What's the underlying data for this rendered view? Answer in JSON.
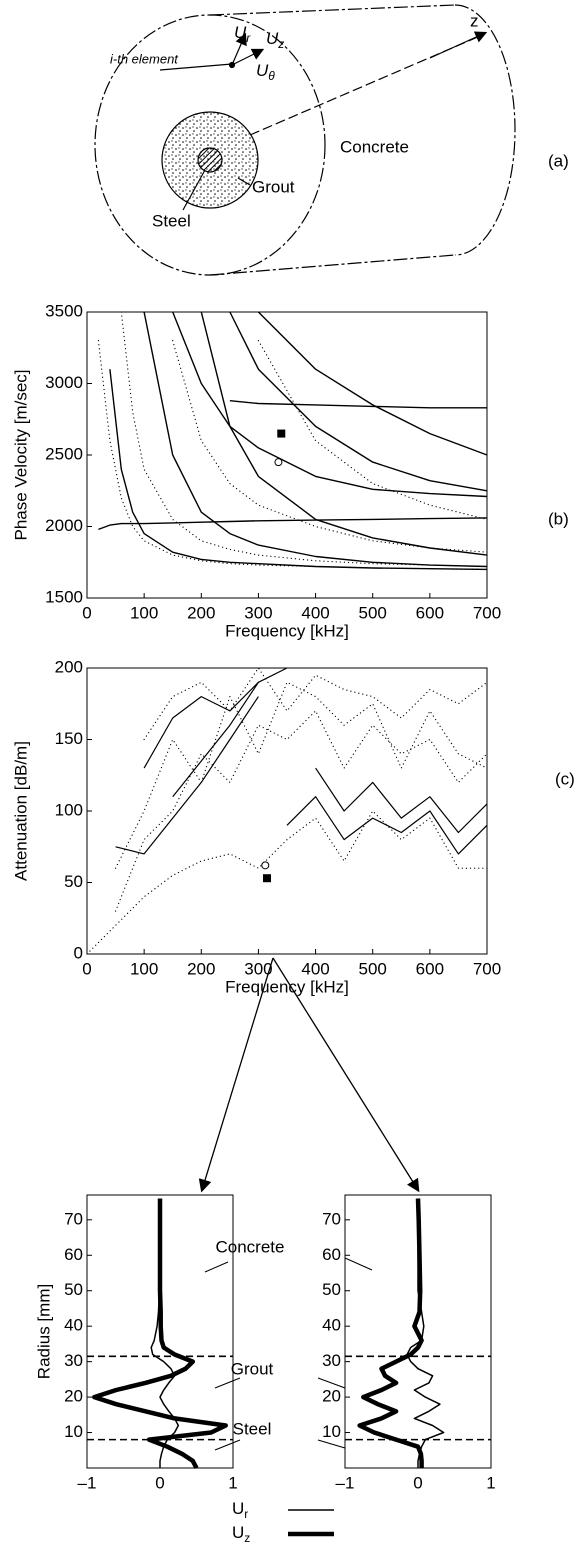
{
  "figure_a": {
    "i_element": "i-th element",
    "ur": {
      "symbol": "U",
      "sub": "r"
    },
    "uz": {
      "symbol": "U",
      "sub": "z"
    },
    "utheta": {
      "symbol": "U",
      "sub": "θ"
    },
    "z": "z",
    "concrete": "Concrete",
    "grout": "Grout",
    "steel": "Steel",
    "panel_label": "(a)"
  },
  "chart_data": [
    {
      "type": "line",
      "panel_label": "(b)",
      "xlabel": "Frequency [kHz]",
      "ylabel": "Phase Velocity [m/sec]",
      "xlim": [
        0,
        700
      ],
      "ylim": [
        1500,
        3500
      ],
      "xticks": [
        0,
        100,
        200,
        300,
        400,
        500,
        600,
        700
      ],
      "yticks": [
        1500,
        2000,
        2500,
        3000,
        3500
      ],
      "x": [
        20,
        40,
        60,
        80,
        100,
        150,
        200,
        250,
        300,
        400,
        500,
        600,
        700
      ],
      "series": [
        {
          "color": "#000000",
          "style": "solid",
          "linewidth": 1.4,
          "values": [
            null,
            3100,
            2400,
            2100,
            1950,
            1820,
            1770,
            1750,
            1740,
            1720,
            1710,
            1705,
            1700
          ]
        },
        {
          "color": "#000000",
          "style": "solid",
          "linewidth": 1.4,
          "values": [
            null,
            null,
            null,
            null,
            3500,
            2500,
            2100,
            1950,
            1870,
            1790,
            1750,
            1730,
            1720
          ]
        },
        {
          "color": "#000000",
          "style": "solid",
          "linewidth": 1.4,
          "values": [
            null,
            null,
            null,
            null,
            null,
            null,
            3500,
            2700,
            2350,
            2050,
            1920,
            1850,
            1800
          ]
        },
        {
          "color": "#000000",
          "style": "solid",
          "linewidth": 1.4,
          "values": [
            1980,
            2010,
            2020,
            2020,
            2020,
            2025,
            2030,
            2035,
            2040,
            2045,
            2050,
            2055,
            2060
          ]
        },
        {
          "color": "#000000",
          "style": "solid",
          "linewidth": 1.4,
          "values": [
            null,
            null,
            null,
            null,
            null,
            3500,
            3000,
            2700,
            2550,
            2350,
            2260,
            2230,
            2210
          ]
        },
        {
          "color": "#000000",
          "style": "solid",
          "linewidth": 1.4,
          "values": [
            null,
            null,
            null,
            null,
            null,
            null,
            null,
            3500,
            3100,
            2700,
            2450,
            2320,
            2250
          ]
        },
        {
          "color": "#000000",
          "style": "solid",
          "linewidth": 1.4,
          "values": [
            null,
            null,
            null,
            null,
            null,
            null,
            null,
            2880,
            2860,
            2850,
            2840,
            2830,
            2830
          ]
        },
        {
          "color": "#000000",
          "style": "solid",
          "linewidth": 1.4,
          "values": [
            null,
            null,
            null,
            null,
            null,
            null,
            null,
            null,
            3500,
            3100,
            2850,
            2650,
            2500
          ]
        },
        {
          "color": "#000000",
          "style": "dotted",
          "linewidth": 1.2,
          "values": [
            3300,
            2600,
            2200,
            2000,
            1900,
            1800,
            1760,
            1740,
            1730,
            1720,
            1710,
            1705,
            1700
          ]
        },
        {
          "color": "#000000",
          "style": "dotted",
          "linewidth": 1.2,
          "values": [
            null,
            null,
            3500,
            2800,
            2400,
            2050,
            1900,
            1840,
            1800,
            1760,
            1740,
            1730,
            1720
          ]
        },
        {
          "color": "#000000",
          "style": "dotted",
          "linewidth": 1.2,
          "values": [
            null,
            null,
            null,
            null,
            null,
            3300,
            2600,
            2300,
            2150,
            2000,
            1900,
            1850,
            1820
          ]
        },
        {
          "color": "#000000",
          "style": "dotted",
          "linewidth": 1.2,
          "values": [
            null,
            null,
            null,
            null,
            null,
            null,
            null,
            null,
            3300,
            2600,
            2300,
            2150,
            2050
          ]
        }
      ],
      "markers": [
        {
          "x": 340,
          "y": 2650,
          "shape": "square"
        },
        {
          "x": 335,
          "y": 2450,
          "shape": "circle"
        }
      ]
    },
    {
      "type": "line",
      "panel_label": "(c)",
      "xlabel": "Frequency [kHz]",
      "ylabel": "Attenuation [dB/m]",
      "xlim": [
        0,
        700
      ],
      "ylim": [
        0,
        200
      ],
      "xticks": [
        0,
        100,
        200,
        300,
        400,
        500,
        600,
        700
      ],
      "yticks": [
        0,
        50,
        100,
        150,
        200
      ],
      "x": [
        0,
        50,
        100,
        150,
        200,
        250,
        300,
        350,
        400,
        450,
        500,
        550,
        600,
        650,
        700
      ],
      "series": [
        {
          "color": "#000000",
          "style": "solid",
          "linewidth": 1.2,
          "values": [
            null,
            75,
            70,
            95,
            120,
            150,
            180,
            null,
            null,
            null,
            null,
            null,
            null,
            null,
            null
          ]
        },
        {
          "color": "#000000",
          "style": "solid",
          "linewidth": 1.2,
          "values": [
            null,
            null,
            null,
            110,
            135,
            160,
            190,
            null,
            null,
            null,
            null,
            null,
            null,
            null,
            null
          ]
        },
        {
          "color": "#000000",
          "style": "solid",
          "linewidth": 1.2,
          "values": [
            null,
            null,
            130,
            165,
            180,
            170,
            190,
            200,
            null,
            null,
            null,
            null,
            null,
            null,
            null
          ]
        },
        {
          "color": "#000000",
          "style": "solid",
          "linewidth": 1.2,
          "values": [
            null,
            null,
            null,
            null,
            null,
            null,
            null,
            90,
            110,
            80,
            95,
            85,
            100,
            70,
            90
          ]
        },
        {
          "color": "#000000",
          "style": "solid",
          "linewidth": 1.2,
          "values": [
            null,
            null,
            null,
            null,
            null,
            null,
            null,
            null,
            130,
            100,
            120,
            95,
            110,
            85,
            105
          ]
        },
        {
          "color": "#000000",
          "style": "dotted",
          "linewidth": 1.2,
          "values": [
            0,
            20,
            40,
            55,
            65,
            70,
            60,
            80,
            95,
            65,
            100,
            80,
            95,
            60,
            60
          ]
        },
        {
          "color": "#000000",
          "style": "dotted",
          "linewidth": 1.2,
          "values": [
            null,
            30,
            80,
            100,
            140,
            120,
            160,
            150,
            170,
            130,
            160,
            140,
            150,
            120,
            140
          ]
        },
        {
          "color": "#000000",
          "style": "dotted",
          "linewidth": 1.2,
          "values": [
            null,
            60,
            100,
            150,
            120,
            180,
            140,
            190,
            180,
            160,
            175,
            130,
            170,
            140,
            130
          ]
        },
        {
          "color": "#000000",
          "style": "dotted",
          "linewidth": 1.2,
          "values": [
            null,
            null,
            150,
            180,
            190,
            170,
            200,
            170,
            195,
            185,
            180,
            165,
            185,
            175,
            190
          ]
        }
      ],
      "markers": [
        {
          "x": 312,
          "y": 62,
          "shape": "circle"
        },
        {
          "x": 315,
          "y": 53,
          "shape": "square"
        }
      ]
    },
    {
      "type": "profile",
      "ylabel": "Radius [mm]",
      "xlim": [
        -1,
        1
      ],
      "ylim": [
        0,
        77
      ],
      "xticks": [
        {
          "value": -1,
          "label": "–1"
        },
        0,
        1
      ],
      "yticks": [
        10,
        20,
        30,
        40,
        50,
        60,
        70
      ],
      "interfaces": [
        8,
        31.5
      ],
      "y": [
        0,
        2,
        4,
        6,
        8,
        10,
        12,
        14,
        16,
        18,
        20,
        22,
        24,
        26,
        28,
        30,
        32,
        34,
        36,
        40,
        44,
        50,
        60,
        70,
        76
      ],
      "series": [
        {
          "color": "#000000",
          "linewidth": 1.5,
          "values": [
            0,
            0,
            0.02,
            0.05,
            0.1,
            0.2,
            0.25,
            0.2,
            0.12,
            0.05,
            0,
            0.05,
            0.12,
            0.2,
            0.15,
            0.05,
            -0.1,
            -0.12,
            -0.08,
            -0.04,
            -0.02,
            -0.01,
            0,
            0,
            0
          ]
        },
        {
          "color": "#000000",
          "linewidth": 4.5,
          "values": [
            0.5,
            0.45,
            0.3,
            0.1,
            -0.15,
            0.7,
            0.9,
            0.2,
            -0.2,
            -0.6,
            -0.9,
            -0.6,
            -0.2,
            0.15,
            0.35,
            0.45,
            0.2,
            0.05,
            0.02,
            0.01,
            0.01,
            0,
            0,
            0,
            0
          ]
        }
      ]
    },
    {
      "type": "profile",
      "xlim": [
        -1,
        1
      ],
      "ylim": [
        0,
        77
      ],
      "xticks": [
        {
          "value": -1,
          "label": "–1"
        },
        0,
        1
      ],
      "yticks": [
        10,
        20,
        30,
        40,
        50,
        60,
        70
      ],
      "interfaces": [
        8,
        31.5
      ],
      "y": [
        0,
        2,
        4,
        6,
        8,
        10,
        12,
        14,
        16,
        18,
        20,
        22,
        24,
        26,
        28,
        30,
        32,
        34,
        36,
        40,
        44,
        50,
        60,
        70,
        76
      ],
      "series": [
        {
          "color": "#000000",
          "linewidth": 1.5,
          "values": [
            0,
            0,
            0.02,
            0.05,
            0.1,
            0.35,
            0.2,
            -0.05,
            0.15,
            0.3,
            0.1,
            -0.05,
            0.15,
            0.2,
            0,
            -0.1,
            -0.15,
            -0.1,
            0.05,
            0.08,
            0.05,
            0,
            0,
            0,
            0
          ]
        },
        {
          "color": "#000000",
          "linewidth": 4.5,
          "values": [
            0.05,
            0.05,
            0.04,
            0,
            -0.3,
            -0.6,
            -0.8,
            -0.5,
            -0.3,
            -0.55,
            -0.75,
            -0.5,
            -0.3,
            -0.45,
            -0.5,
            -0.3,
            -0.1,
            0,
            0.05,
            -0.05,
            0.02,
            0.03,
            0.02,
            0.01,
            0
          ]
        }
      ]
    }
  ],
  "annotations": [
    "Concrete",
    "Grout",
    "Steel"
  ],
  "legend": [
    {
      "symbol": "U",
      "sub": "r",
      "linewidth": 1.5
    },
    {
      "symbol": "U",
      "sub": "z",
      "linewidth": 4.5
    }
  ]
}
